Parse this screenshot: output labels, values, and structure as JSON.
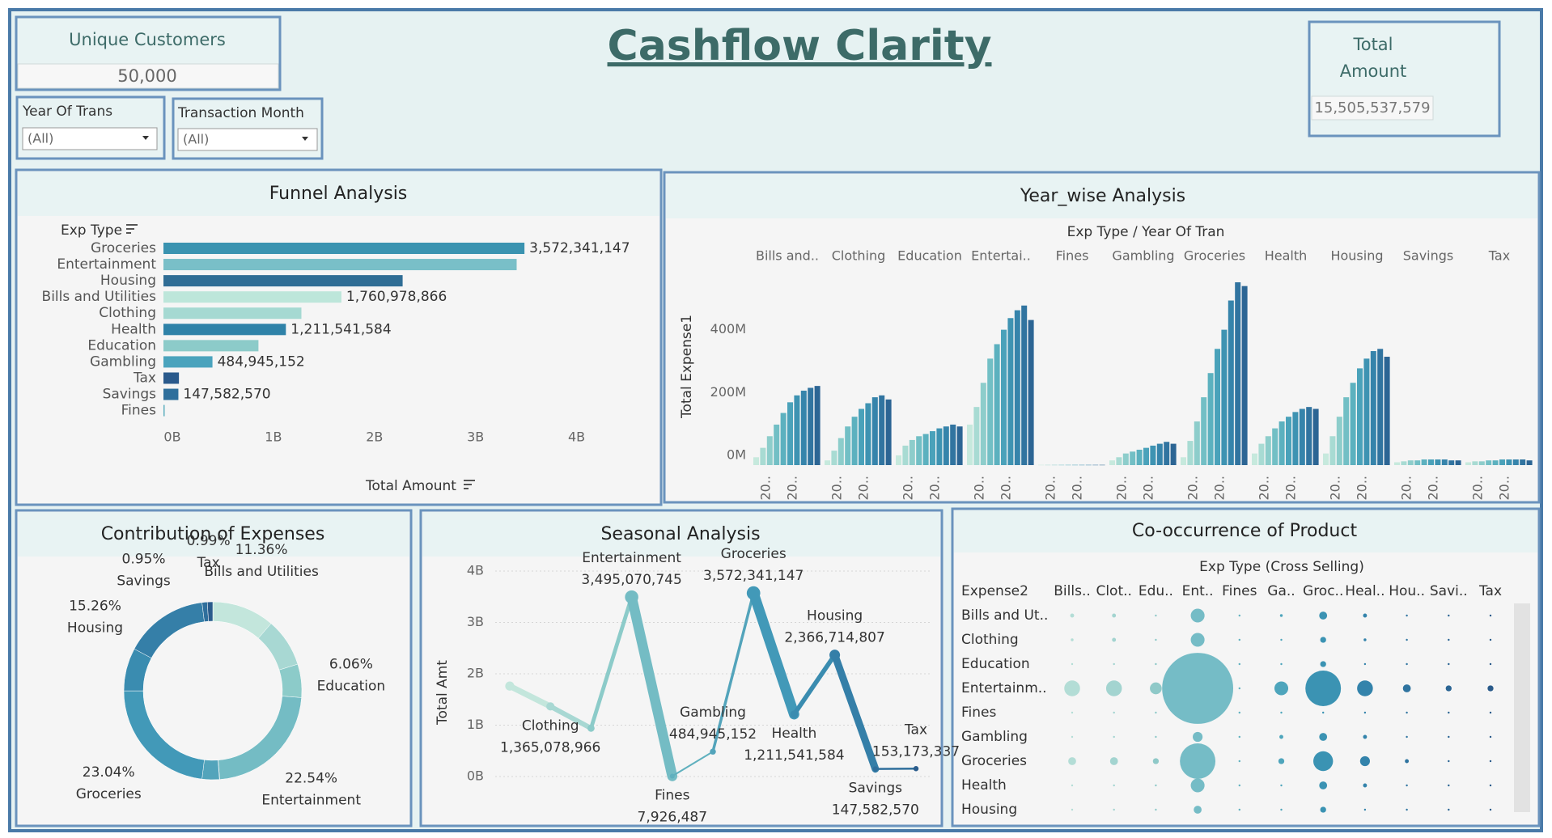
{
  "header": {
    "title": "Cashflow Clarity"
  },
  "kpis": [
    {
      "label": "Unique Customers",
      "value": "50,000"
    },
    {
      "label": [
        "Total",
        "Amount"
      ],
      "value": "15,505,537,579"
    }
  ],
  "filters": [
    {
      "label": "Year Of Trans",
      "value": "(All)"
    },
    {
      "label": "Transaction Month",
      "value": "(All)"
    }
  ],
  "chart_data": [
    {
      "type": "bar",
      "title": "Funnel Analysis",
      "y_header": "Exp Type",
      "xlabel": "Total Amount",
      "categories": [
        "Groceries",
        "Entertainment",
        "Housing",
        "Bills and Utilities",
        "Clothing",
        "Health",
        "Education",
        "Gambling",
        "Tax",
        "Savings",
        "Fines"
      ],
      "values": [
        3572341147,
        3495070745,
        2366714807,
        1760978866,
        1365078966,
        1211541584,
        940000000,
        484945152,
        153173337,
        147582570,
        7926487
      ],
      "value_labels": [
        "3,572,341,147",
        null,
        null,
        "1,760,978,866",
        null,
        "1,211,541,584",
        null,
        "484,945,152",
        null,
        "147,582,570",
        null
      ],
      "colors": [
        "#3a93b0",
        "#79bfc8",
        "#2f6d95",
        "#bde6da",
        "#a5d9d2",
        "#2f82a8",
        "#8ccbc9",
        "#4aa3bd",
        "#2a5a8c",
        "#2f6f9c",
        "#5fb0be"
      ],
      "xlim": [
        0,
        4500000000
      ],
      "xticks": [
        {
          "value": 0,
          "label": "0B"
        },
        {
          "value": 1000000000,
          "label": "1B"
        },
        {
          "value": 2000000000,
          "label": "2B"
        },
        {
          "value": 3000000000,
          "label": "3B"
        },
        {
          "value": 4000000000,
          "label": "4B"
        }
      ]
    },
    {
      "type": "column",
      "title": "Year_wise Analysis",
      "header": "Exp Type / Year Of Tran",
      "ylabel": "Total Expense1",
      "categories": [
        "Bills and..",
        "Clothing",
        "Education",
        "Entertai..",
        "Fines",
        "Gambling",
        "Groceries",
        "Health",
        "Housing",
        "Savings",
        "Tax"
      ],
      "year_tick_labels": [
        "20..",
        "20.."
      ],
      "colors": [
        "#c6e9dd",
        "#a8dbd3",
        "#8dcdcb",
        "#72bfc5",
        "#5cb1bf",
        "#4aa2ba",
        "#3e93b2",
        "#3684ab",
        "#3174a0",
        "#2c6594"
      ],
      "groups": [
        {
          "values": [
            25000000,
            55000000,
            92000000,
            129000000,
            166000000,
            200000000,
            222000000,
            237000000,
            246000000,
            252000000
          ]
        },
        {
          "values": [
            15000000,
            46000000,
            86000000,
            123000000,
            154000000,
            179000000,
            197000000,
            216000000,
            222000000,
            209000000
          ]
        },
        {
          "values": [
            31000000,
            62000000,
            80000000,
            92000000,
            99000000,
            108000000,
            117000000,
            123000000,
            129000000,
            123000000
          ]
        },
        {
          "values": [
            129000000,
            185000000,
            262000000,
            339000000,
            385000000,
            431000000,
            468000000,
            493000000,
            508000000,
            462000000
          ]
        },
        {
          "values": [
            800000,
            800000,
            800000,
            800000,
            800000,
            800000,
            800000,
            800000,
            800000,
            800000
          ]
        },
        {
          "values": [
            15000000,
            25000000,
            37000000,
            43000000,
            49000000,
            55000000,
            62000000,
            68000000,
            74000000,
            68000000
          ]
        },
        {
          "values": [
            25000000,
            77000000,
            139000000,
            216000000,
            293000000,
            370000000,
            431000000,
            524000000,
            582000000,
            570000000
          ]
        },
        {
          "values": [
            37000000,
            68000000,
            92000000,
            117000000,
            139000000,
            154000000,
            169000000,
            179000000,
            185000000,
            179000000
          ]
        },
        {
          "values": [
            37000000,
            92000000,
            154000000,
            216000000,
            262000000,
            308000000,
            339000000,
            363000000,
            370000000,
            345000000
          ]
        },
        {
          "values": [
            9000000,
            12000000,
            15000000,
            15000000,
            18000000,
            18000000,
            18000000,
            18000000,
            15000000,
            15000000
          ]
        },
        {
          "values": [
            9000000,
            12000000,
            12000000,
            15000000,
            15000000,
            18000000,
            18000000,
            18000000,
            18000000,
            15000000
          ]
        }
      ],
      "ylim": [
        0,
        600000000
      ],
      "yticks": [
        {
          "value": 0,
          "label": "0M"
        },
        {
          "value": 200000000,
          "label": "200M"
        },
        {
          "value": 400000000,
          "label": "400M"
        }
      ]
    },
    {
      "type": "donut",
      "title": "Contribution of Expenses",
      "categories": [
        "Bills and Utilities",
        null,
        "Education",
        "Entertainment",
        null,
        null,
        "Groceries",
        null,
        "Housing",
        "Savings",
        "Tax"
      ],
      "values": [
        11.36,
        8.8,
        6.06,
        22.54,
        0.05,
        3.13,
        23.04,
        7.81,
        15.26,
        0.95,
        0.99
      ],
      "value_labels": [
        "11.36%",
        null,
        "6.06%",
        "22.54%",
        null,
        null,
        "23.04%",
        null,
        "15.26%",
        "0.95%",
        "0.99%"
      ],
      "colors": [
        "#c3e6dc",
        "#a8d8d3",
        "#8ccbc9",
        "#74bcc4",
        "#5fb0be",
        "#53a4bb",
        "#4299b8",
        "#3a8cb0",
        "#357fa8",
        "#2f6f9c",
        "#2a5c8c"
      ]
    },
    {
      "type": "line",
      "title": "Seasonal Analysis",
      "ylabel": "Total Amt",
      "categories": [
        null,
        "Clothing",
        null,
        "Entertainment",
        "Fines",
        "Gambling",
        "Groceries",
        "Health",
        "Housing",
        "Savings",
        "Tax"
      ],
      "values": [
        1760978866,
        1365078966,
        940000000,
        3495070745,
        7926487,
        484945152,
        3572341147,
        1211541584,
        2366714807,
        147582570,
        153173337
      ],
      "value_labels": [
        null,
        "1,365,078,966",
        null,
        "3,495,070,745",
        "7,926,487",
        "484,945,152",
        "3,572,341,147",
        "1,211,541,584",
        "2,366,714,807",
        "147,582,570",
        "153,173,337"
      ],
      "colors": [
        "#c3e6dc",
        "#a8d8d3",
        "#8ccbc9",
        "#74bcc4",
        "#5fb0be",
        "#53a4bb",
        "#4299b8",
        "#3a8cb0",
        "#357fa8",
        "#2f6f9c",
        "#2a5c8c"
      ],
      "ylim": [
        0,
        4000000000
      ],
      "grid": true,
      "yticks": [
        {
          "value": 0,
          "label": "0B"
        },
        {
          "value": 1000000000,
          "label": "1B"
        },
        {
          "value": 2000000000,
          "label": "2B"
        },
        {
          "value": 3000000000,
          "label": "3B"
        },
        {
          "value": 4000000000,
          "label": "4B"
        }
      ]
    },
    {
      "type": "bubble",
      "title": "Co-occurrence of Product",
      "column_header": "Exp Type (Cross Selling)",
      "row_header": "Expense2",
      "columns": [
        "Bills..",
        "Clot..",
        "Edu..",
        "Ent..",
        "Fines",
        "Ga..",
        "Groc..",
        "Heal..",
        "Hou..",
        "Savi..",
        "Tax"
      ],
      "rows": [
        "Bills and Ut..",
        "Clothing",
        "Education",
        "Entertainm..",
        "Fines",
        "Gambling",
        "Groceries",
        "Health",
        "Housing"
      ],
      "colors": [
        "#b3ddd6",
        "#a3d4d0",
        "#8fc9c8",
        "#75bcc6",
        "#62b2c0",
        "#4ea5bc",
        "#3b93b3",
        "#3383ab",
        "#2f74a0",
        "#2b6594",
        "#295a8a"
      ],
      "values": [
        [
          4,
          4,
          1,
          49,
          1,
          2,
          16,
          4,
          1,
          1,
          1
        ],
        [
          2,
          4,
          1,
          49,
          1,
          1,
          9,
          2,
          1,
          1,
          1
        ],
        [
          1,
          1,
          1,
          25,
          1,
          1,
          9,
          1,
          1,
          1,
          1
        ],
        [
          64,
          64,
          36,
          1296,
          1,
          49,
          324,
          64,
          16,
          9,
          9
        ],
        [
          1,
          1,
          1,
          4,
          1,
          1,
          1,
          1,
          1,
          1,
          1
        ],
        [
          1,
          1,
          1,
          25,
          1,
          4,
          16,
          4,
          1,
          1,
          1
        ],
        [
          16,
          16,
          9,
          324,
          1,
          9,
          100,
          25,
          4,
          1,
          1
        ],
        [
          1,
          1,
          1,
          49,
          1,
          1,
          16,
          4,
          1,
          1,
          1
        ],
        [
          1,
          1,
          1,
          16,
          1,
          1,
          9,
          1,
          1,
          1,
          1
        ]
      ]
    }
  ]
}
